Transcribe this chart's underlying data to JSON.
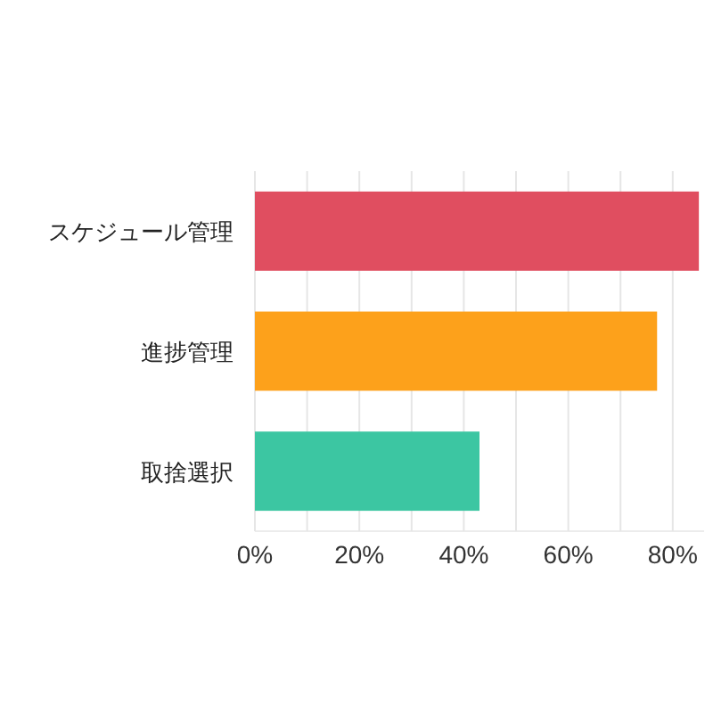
{
  "chart_data": {
    "type": "bar",
    "orientation": "horizontal",
    "categories": [
      "スケジュール管理",
      "進捗管理",
      "取捨選択"
    ],
    "values": [
      85,
      77,
      43
    ],
    "colors": [
      "#e04e60",
      "#fda11b",
      "#3cc6a2"
    ],
    "xlim": [
      0,
      86
    ],
    "xticks": [
      {
        "value": 0,
        "label": "0%"
      },
      {
        "value": 10,
        "label": null
      },
      {
        "value": 20,
        "label": "20%"
      },
      {
        "value": 30,
        "label": null
      },
      {
        "value": 40,
        "label": "40%"
      },
      {
        "value": 50,
        "label": null
      },
      {
        "value": 60,
        "label": "60%"
      },
      {
        "value": 70,
        "label": null
      },
      {
        "value": 80,
        "label": "80%"
      }
    ],
    "grid": "x"
  }
}
